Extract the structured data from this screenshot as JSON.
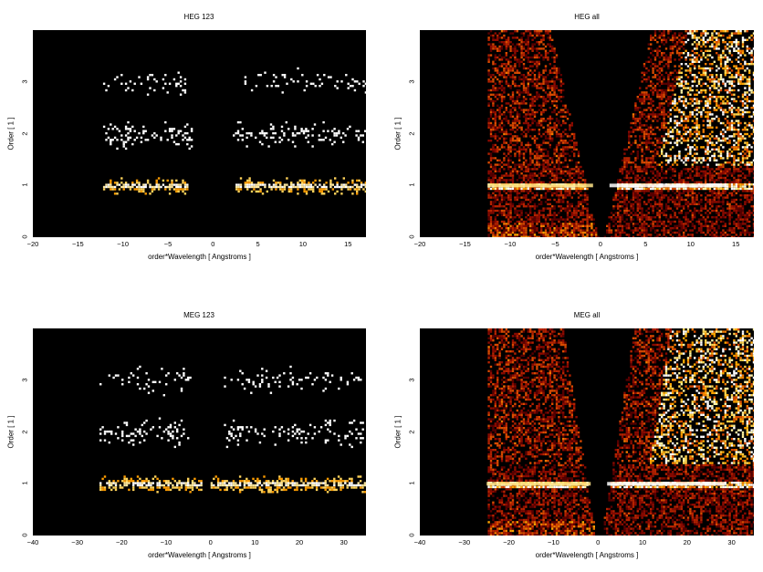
{
  "chart_data": [
    {
      "type": "heatmap",
      "title": "HEG 123",
      "xlabel": "order*Wavelength [ Angstroms ]",
      "ylabel": "Order [ 1 ]",
      "xlim": [
        -20,
        17
      ],
      "ylim": [
        0,
        4
      ],
      "xticks": [
        -20,
        -15,
        -10,
        -5,
        0,
        5,
        10,
        15
      ],
      "yticks": [
        0,
        1,
        2,
        3
      ],
      "xtick_labels": [
        "−20",
        "−15",
        "−10",
        "−5",
        "0",
        "5",
        "10",
        "15"
      ],
      "ytick_labels": [
        "0",
        "1",
        "2",
        "3"
      ],
      "bands": [
        {
          "order": 1,
          "x_ranges": [
            [
              -12.2,
              -2.8
            ],
            [
              2.5,
              17
            ]
          ],
          "intensity": "high"
        },
        {
          "order": 2,
          "x_ranges": [
            [
              -12.2,
              -2.2
            ],
            [
              2.2,
              17
            ]
          ],
          "intensity": "medium"
        },
        {
          "order": 3,
          "x_ranges": [
            [
              -12.2,
              -3.0
            ],
            [
              3.0,
              17
            ]
          ],
          "intensity": "low"
        }
      ]
    },
    {
      "type": "heatmap",
      "title": "HEG all",
      "xlabel": "order*Wavelength [ Angstroms ]",
      "ylabel": "Order [ 1 ]",
      "xlim": [
        -20,
        17
      ],
      "ylim": [
        0,
        4
      ],
      "xticks": [
        -20,
        -15,
        -10,
        -5,
        0,
        5,
        10,
        15
      ],
      "yticks": [
        0,
        1,
        2,
        3
      ],
      "xtick_labels": [
        "−20",
        "−15",
        "−10",
        "−5",
        "0",
        "5",
        "10",
        "15"
      ],
      "ytick_labels": [
        "0",
        "1",
        "2",
        "3"
      ],
      "colormap": "hot"
    },
    {
      "type": "heatmap",
      "title": "MEG 123",
      "xlabel": "order*Wavelength [ Angstroms ]",
      "ylabel": "Order [ 1 ]",
      "xlim": [
        -40,
        35
      ],
      "ylim": [
        0,
        4
      ],
      "xticks": [
        -40,
        -30,
        -20,
        -10,
        0,
        10,
        20,
        30
      ],
      "yticks": [
        0,
        1,
        2,
        3
      ],
      "xtick_labels": [
        "−40",
        "−30",
        "−20",
        "−10",
        "0",
        "10",
        "20",
        "30"
      ],
      "ytick_labels": [
        "0",
        "1",
        "2",
        "3"
      ],
      "bands": [
        {
          "order": 1,
          "x_ranges": [
            [
              -25,
              -2
            ],
            [
              0,
              35
            ]
          ],
          "intensity": "high"
        },
        {
          "order": 2,
          "x_ranges": [
            [
              -25,
              -5
            ],
            [
              3,
              35
            ]
          ],
          "intensity": "medium"
        },
        {
          "order": 3,
          "x_ranges": [
            [
              -25,
              -4
            ],
            [
              3,
              35
            ]
          ],
          "intensity": "low"
        }
      ]
    },
    {
      "type": "heatmap",
      "title": "MEG all",
      "xlabel": "order*Wavelength [ Angstroms ]",
      "ylabel": "Order [ 1 ]",
      "xlim": [
        -40,
        35
      ],
      "ylim": [
        0,
        4
      ],
      "xticks": [
        -40,
        -30,
        -20,
        -10,
        0,
        10,
        20,
        30
      ],
      "yticks": [
        0,
        1,
        2,
        3
      ],
      "xtick_labels": [
        "−40",
        "−30",
        "−20",
        "−10",
        "0",
        "10",
        "20",
        "30"
      ],
      "ytick_labels": [
        "0",
        "1",
        "2",
        "3"
      ],
      "colormap": "hot"
    }
  ]
}
